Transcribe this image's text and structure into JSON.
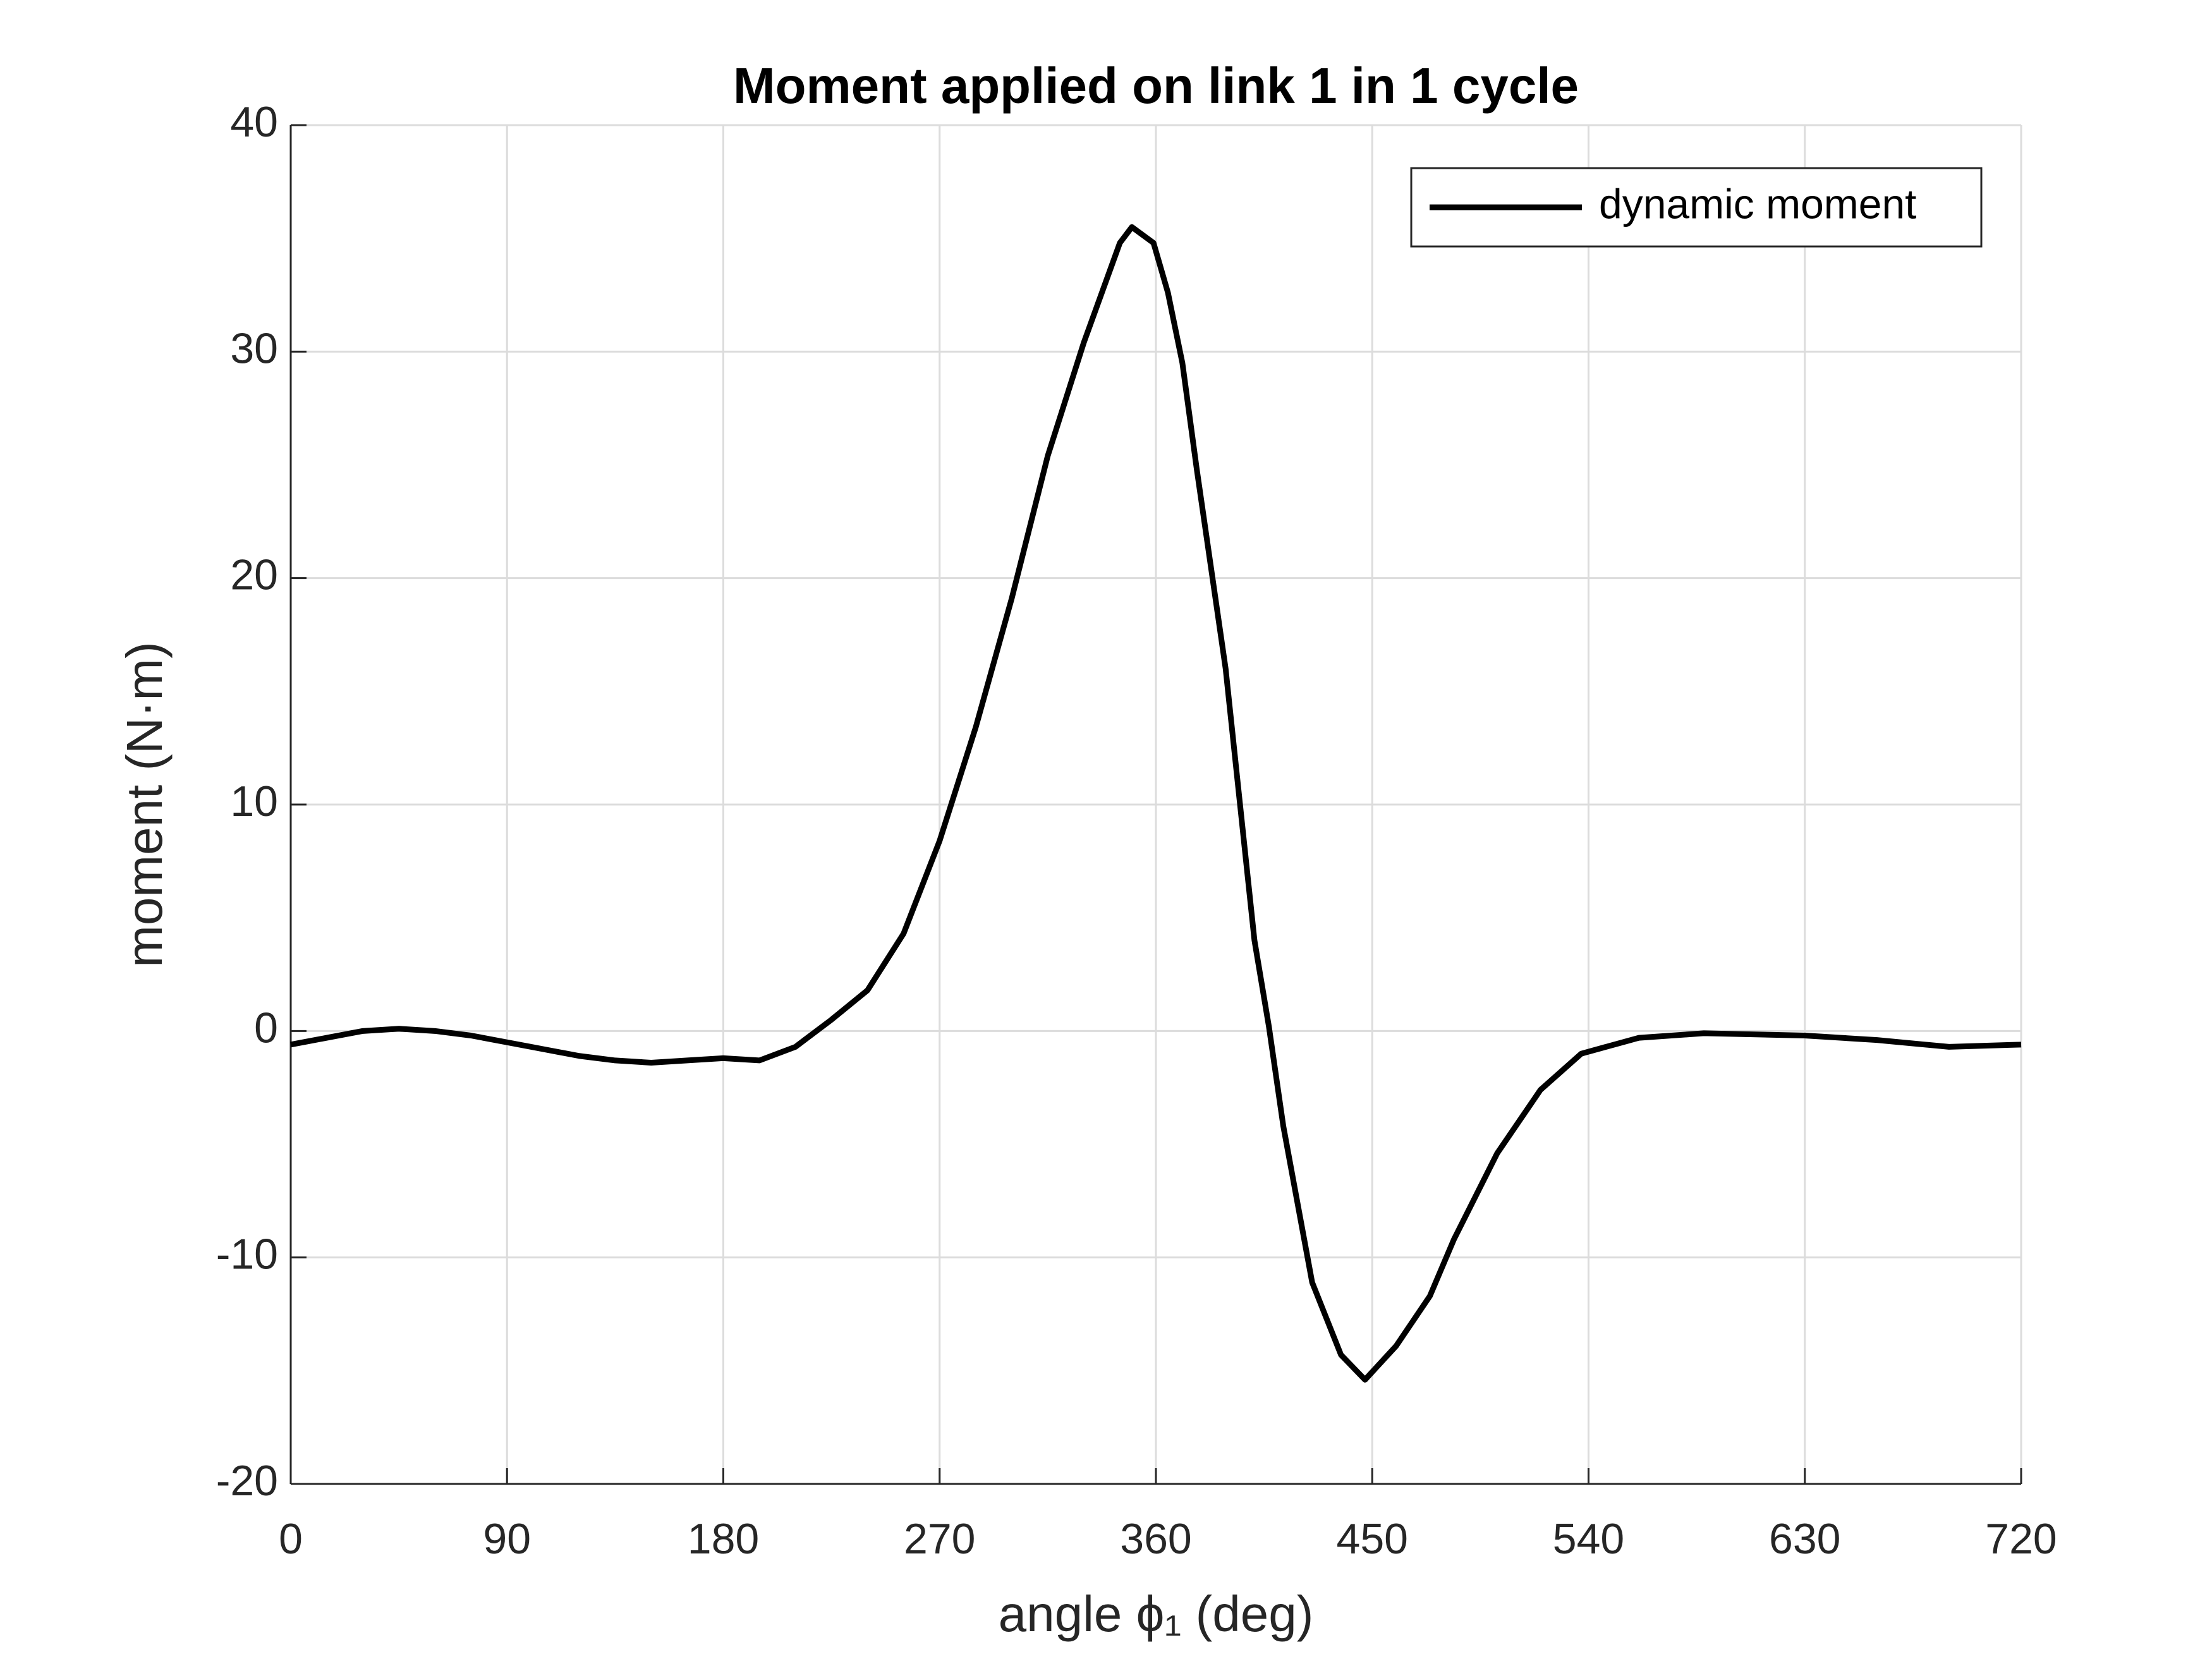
{
  "chart_data": {
    "type": "line",
    "title": "Moment applied on link 1 in 1 cycle",
    "xlabel": "angle ϕ₁ (deg)",
    "ylabel": "moment (N·m)",
    "x": [
      0,
      15,
      30,
      45,
      60,
      75,
      90,
      105,
      120,
      135,
      150,
      165,
      180,
      195,
      210,
      225,
      240,
      255,
      270,
      285,
      300,
      315,
      330,
      345,
      350,
      359,
      365,
      371,
      377,
      389,
      401,
      407,
      413,
      425,
      437,
      447,
      460,
      474,
      484,
      502,
      520,
      537,
      561,
      588,
      630,
      660,
      690,
      720
    ],
    "series": [
      {
        "name": "dynamic moment",
        "color": "#000000",
        "values": [
          -0.6,
          -0.3,
          0.0,
          0.1,
          0.0,
          -0.2,
          -0.5,
          -0.8,
          -1.1,
          -1.3,
          -1.4,
          -1.3,
          -1.2,
          -1.3,
          -0.7,
          0.5,
          1.8,
          4.3,
          8.4,
          13.4,
          19.1,
          25.4,
          30.4,
          34.8,
          35.5,
          34.8,
          32.6,
          29.5,
          24.8,
          16,
          4,
          0.2,
          -4.2,
          -11.1,
          -14.3,
          -15.4,
          -13.9,
          -11.7,
          -9.2,
          -5.4,
          -2.6,
          -1.0,
          -0.3,
          -0.1,
          -0.2,
          -0.4,
          -0.7,
          -0.6
        ]
      }
    ],
    "xlim": [
      0,
      720
    ],
    "xticks": [
      0,
      90,
      180,
      270,
      360,
      450,
      540,
      630,
      720
    ],
    "ylim": [
      -20,
      40
    ],
    "yticks": [
      -20,
      -10,
      0,
      10,
      20,
      30,
      40
    ],
    "grid": true,
    "legend": "northeast"
  }
}
